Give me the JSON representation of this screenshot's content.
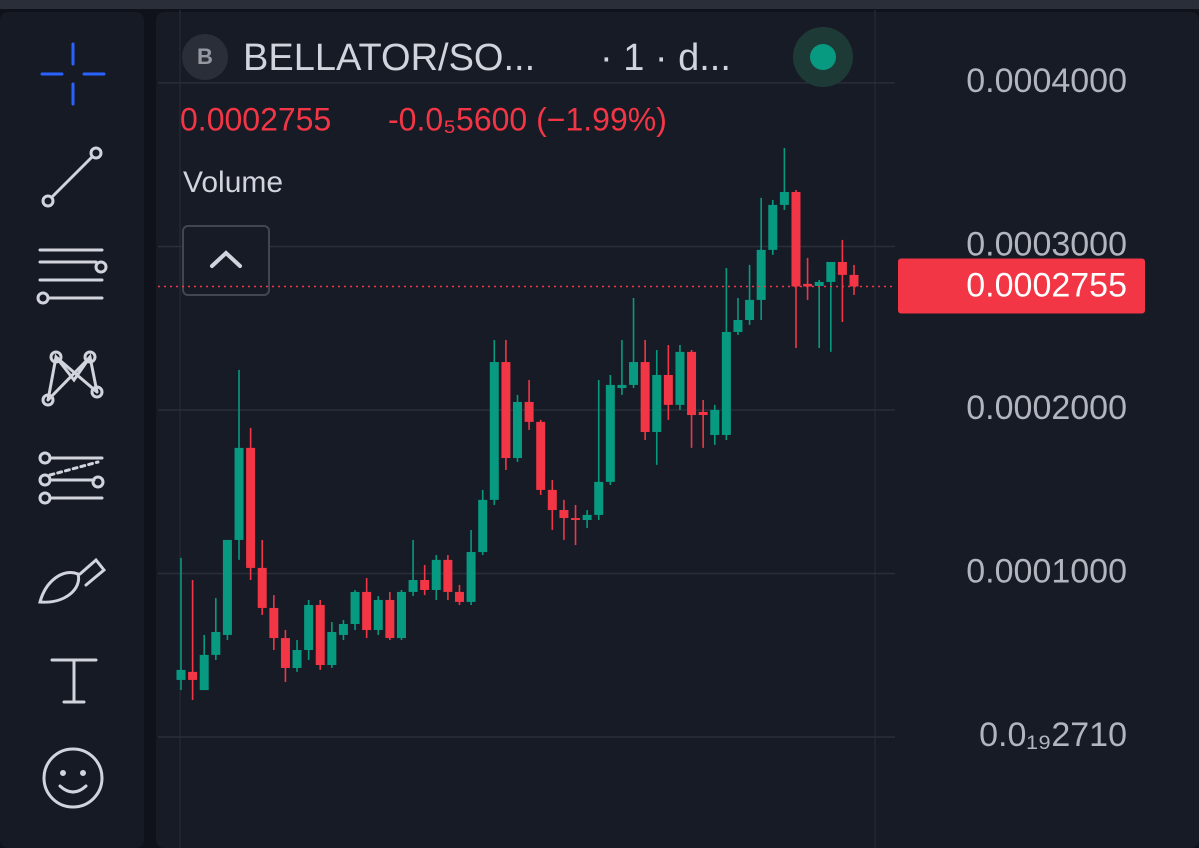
{
  "header": {
    "avatar": "B",
    "symbol": "BELLATOR/SO...",
    "interval": "· 1 · d...",
    "price": "0.0002755",
    "change": "-0.0₅5600 (−1.99%)",
    "indicator": "Volume"
  },
  "chart_data": {
    "type": "candlestick",
    "up_color": "#089981",
    "down_color": "#f23645",
    "grid": true,
    "ylim": [
      -6.79e-05,
      0.0004446
    ],
    "yticks": [
      {
        "value": 0.0004,
        "label": "0.0004000"
      },
      {
        "value": 0.0003,
        "label": "0.0003000"
      },
      {
        "value": 0.0002,
        "label": "0.0002000"
      },
      {
        "value": 0.0001,
        "label": "0.0001000"
      },
      {
        "value": 2.71e-20,
        "label": "0.0₁₉2710"
      }
    ],
    "last_price": {
      "value": 0.0002755,
      "label": "0.0002755"
    },
    "open": [
      3.49e-05,
      3.98e-05,
      2.87e-05,
      5.02e-05,
      6.24e-05,
      0.0001205,
      0.0001768,
      0.0001034,
      7.89e-05,
      6.05e-05,
      4.22e-05,
      5.32e-05,
      8.07e-05,
      4.4e-05,
      6.24e-05,
      6.91e-05,
      8.87e-05,
      6.54e-05,
      8.38e-05,
      6.05e-05,
      8.87e-05,
      9.6e-05,
      8.99e-05,
      0.0001083,
      8.87e-05,
      8.26e-05,
      0.0001131,
      0.000145,
      0.0002293,
      0.0001706,
      0.0002049,
      0.0001927,
      0.0001511,
      0.0001388,
      0.0001339,
      0.0001327,
      0.0001358,
      0.000156,
      0.0002134,
      0.0002153,
      0.0002293,
      0.0001865,
      0.0002214,
      0.0002031,
      0.0002355,
      0.0001988,
      0.0001847,
      0.0001847,
      0.0002477,
      0.000255,
      0.0002673,
      0.0002979,
      0.0003254,
      0.0003333,
      0.0002771,
      0.0002758,
      0.0002783,
      0.0002905,
      0.0002826
    ],
    "high": [
      0.0001095,
      9.6e-05,
      6.24e-05,
      8.5e-05,
      0.0001205,
      0.0002245,
      0.000189,
      0.0001205,
      8.68e-05,
      6.54e-05,
      5.93e-05,
      8.38e-05,
      8.38e-05,
      7.03e-05,
      7.16e-05,
      8.99e-05,
      9.72e-05,
      8.62e-05,
      8.87e-05,
      8.99e-05,
      0.0001205,
      0.0001052,
      0.0001113,
      0.0001113,
      9.3e-05,
      0.0001266,
      0.0001511,
      0.0002428,
      0.0002428,
      0.0002092,
      0.0002183,
      0.0001939,
      0.0001572,
      0.000145,
      0.0001419,
      0.0001388,
      0.0002183,
      0.0002214,
      0.0002428,
      0.0002685,
      0.0002428,
      0.0002367,
      0.0002397,
      0.0002397,
      0.0002367,
      0.0002061,
      0.0002031,
      0.0002868,
      0.0002685,
      0.0002887,
      0.0003297,
      0.0003284,
      0.0003602,
      0.0003345,
      0.000293,
      0.0002795,
      0.0002905,
      0.000304,
      0.0002887
    ],
    "low": [
      2.87e-05,
      2.26e-05,
      2.87e-05,
      4.71e-05,
      5.93e-05,
      0.0001083,
      9.6e-05,
      7.46e-05,
      5.32e-05,
      3.36e-05,
      3.98e-05,
      4.71e-05,
      4.1e-05,
      4.22e-05,
      5.93e-05,
      6.54e-05,
      6.05e-05,
      6.24e-05,
      5.93e-05,
      5.93e-05,
      8.62e-05,
      8.68e-05,
      8.38e-05,
      8.38e-05,
      8.07e-05,
      8.07e-05,
      0.0001113,
      0.0001419,
      0.0001633,
      0.0001682,
      0.0001878,
      0.000148,
      0.0001266,
      0.0001205,
      0.0001174,
      0.0001278,
      0.0001327,
      0.0001541,
      0.0002092,
      0.0002134,
      0.0001816,
      0.0001664,
      0.0001939,
      0.0002,
      0.0001768,
      0.0001768,
      0.0001786,
      0.0001816,
      0.0002459,
      0.000252,
      0.000255,
      0.0002948,
      0.0003223,
      0.0002379,
      0.0002673,
      0.0002379,
      0.0002355,
      0.0002538,
      0.0002703
    ],
    "close": [
      4.1e-05,
      3.49e-05,
      5.02e-05,
      6.42e-05,
      0.0001205,
      0.0001768,
      0.0001034,
      7.89e-05,
      6.05e-05,
      4.22e-05,
      5.32e-05,
      8.07e-05,
      4.4e-05,
      6.42e-05,
      6.91e-05,
      8.87e-05,
      6.54e-05,
      8.38e-05,
      6.05e-05,
      8.87e-05,
      9.6e-05,
      8.99e-05,
      0.0001083,
      8.87e-05,
      8.26e-05,
      0.0001131,
      0.000145,
      0.0002293,
      0.0001706,
      0.0002049,
      0.0001927,
      0.0001511,
      0.0001388,
      0.0001339,
      0.0001327,
      0.0001358,
      0.000156,
      0.0002153,
      0.0002153,
      0.0002293,
      0.0001865,
      0.0002214,
      0.0002031,
      0.0002355,
      0.0001969,
      0.0001969,
      0.0002,
      0.0002477,
      0.000255,
      0.0002673,
      0.0002979,
      0.0003254,
      0.0003333,
      0.0002755,
      0.0002755,
      0.0002783,
      0.0002905,
      0.0002826,
      0.0002755
    ]
  }
}
